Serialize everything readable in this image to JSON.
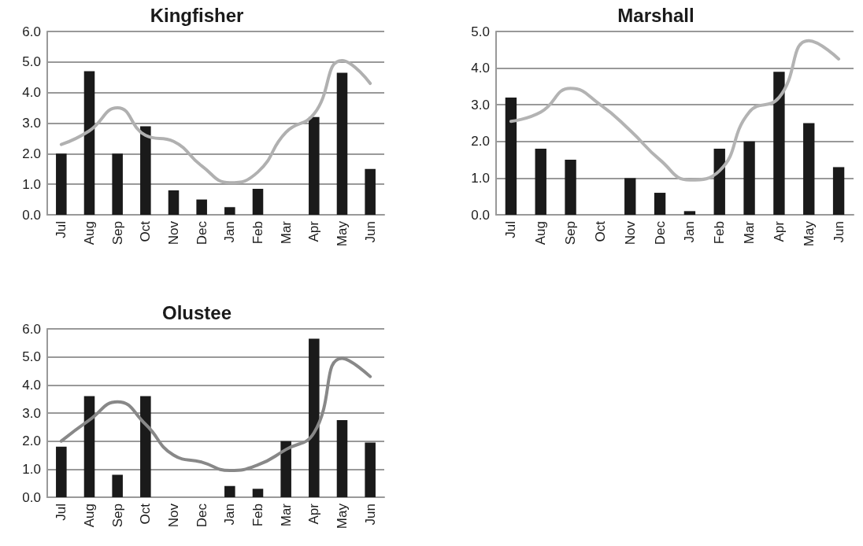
{
  "chart_data": [
    {
      "type": "bar",
      "title": "Kingfisher",
      "categories": [
        "Jul",
        "Aug",
        "Sep",
        "Oct",
        "Nov",
        "Dec",
        "Jan",
        "Feb",
        "Mar",
        "Apr",
        "May",
        "Jun"
      ],
      "ylim": [
        0,
        6
      ],
      "yticks": [
        {
          "value": 0,
          "label": "0.0"
        },
        {
          "value": 1,
          "label": "1.0"
        },
        {
          "value": 2,
          "label": "2.0"
        },
        {
          "value": 3,
          "label": "3.0"
        },
        {
          "value": 4,
          "label": "4.0"
        },
        {
          "value": 5,
          "label": "5.0"
        },
        {
          "value": 6,
          "label": "6.0"
        }
      ],
      "grid": "y",
      "series": [
        {
          "color": "#1a1a1a",
          "values": [
            2.0,
            4.7,
            2.0,
            2.9,
            0.8,
            0.5,
            0.25,
            0.85,
            0,
            3.2,
            4.65,
            1.5
          ]
        },
        {
          "type": "line",
          "color": "#b0b0b0",
          "marker": "none",
          "values": [
            2.3,
            2.75,
            3.5,
            2.6,
            2.4,
            1.6,
            1.05,
            1.4,
            2.7,
            3.3,
            5.05,
            4.3
          ]
        }
      ]
    },
    {
      "type": "bar",
      "title": "Marshall",
      "categories": [
        "Jul",
        "Aug",
        "Sep",
        "Oct",
        "Nov",
        "Dec",
        "Jan",
        "Feb",
        "Mar",
        "Apr",
        "May",
        "Jun"
      ],
      "ylim": [
        0,
        5
      ],
      "yticks": [
        {
          "value": 0,
          "label": "0.0"
        },
        {
          "value": 1,
          "label": "1.0"
        },
        {
          "value": 2,
          "label": "2.0"
        },
        {
          "value": 3,
          "label": "3.0"
        },
        {
          "value": 4,
          "label": "4.0"
        },
        {
          "value": 5,
          "label": "5.0"
        }
      ],
      "grid": "y",
      "series": [
        {
          "color": "#1a1a1a",
          "values": [
            3.2,
            1.8,
            1.5,
            0,
            1.0,
            0.6,
            0.1,
            1.8,
            2.0,
            3.9,
            2.5,
            1.3
          ]
        },
        {
          "type": "line",
          "color": "#b3b3b3",
          "marker": "none",
          "values": [
            2.55,
            2.8,
            3.45,
            3.0,
            2.3,
            1.5,
            0.95,
            1.2,
            2.8,
            3.2,
            4.75,
            4.25
          ]
        }
      ]
    },
    {
      "type": "bar",
      "title": "Olustee",
      "categories": [
        "Jul",
        "Aug",
        "Sep",
        "Oct",
        "Nov",
        "Dec",
        "Jan",
        "Feb",
        "Mar",
        "Apr",
        "May",
        "Jun"
      ],
      "ylim": [
        0,
        6
      ],
      "yticks": [
        {
          "value": 0,
          "label": "0.0"
        },
        {
          "value": 1,
          "label": "1.0"
        },
        {
          "value": 2,
          "label": "2.0"
        },
        {
          "value": 3,
          "label": "3.0"
        },
        {
          "value": 4,
          "label": "4.0"
        },
        {
          "value": 5,
          "label": "5.0"
        },
        {
          "value": 6,
          "label": "6.0"
        }
      ],
      "grid": "y",
      "series": [
        {
          "color": "#1a1a1a",
          "values": [
            1.8,
            3.6,
            0.8,
            3.6,
            0,
            0,
            0.4,
            0.3,
            2.0,
            5.65,
            2.75,
            1.95
          ]
        },
        {
          "type": "line",
          "color": "#888888",
          "marker": "none",
          "values": [
            2.0,
            2.75,
            3.4,
            2.6,
            1.5,
            1.25,
            0.95,
            1.15,
            1.7,
            2.3,
            4.95,
            4.3
          ]
        }
      ]
    }
  ]
}
